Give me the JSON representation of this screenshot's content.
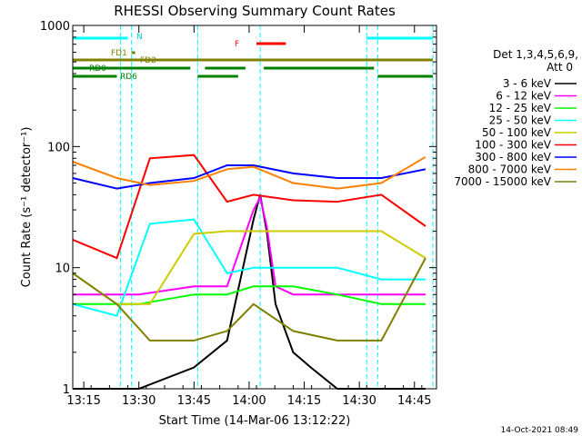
{
  "chart_data": {
    "type": "line",
    "title": "RHESSI Observing Summary Count Rates",
    "xlabel": "Start Time (14-Mar-06 13:12:22)",
    "ylabel": "Count Rate (s⁻¹ detector⁻¹)",
    "y_scale": "log",
    "ylim": [
      1,
      1000
    ],
    "xlim": [
      "13:12",
      "14:51"
    ],
    "x_ticks": [
      "13:15",
      "13:30",
      "13:45",
      "14:00",
      "14:15",
      "14:30",
      "14:45"
    ],
    "y_ticks": [
      "1",
      "10",
      "100",
      "1000"
    ],
    "legend_header": [
      "Det 1,3,4,5,6,9,",
      "Att 0"
    ],
    "legend_position": "right",
    "timestamp": "14-Oct-2021 08:49",
    "flag_labels": {
      "night": "N",
      "flare": "F",
      "fast_rate_1": "FD1",
      "fast_rate_2": "FD2",
      "decimation_0": "RD0",
      "decimation_6": "RD6"
    },
    "flag_bars": [
      {
        "label": "N",
        "color": "#00ffff",
        "segments": [
          [
            "13:12",
            "13:27"
          ],
          [
            "14:32",
            "14:50"
          ]
        ]
      },
      {
        "label": "F",
        "color": "#ff0000",
        "segments": [
          [
            "14:02",
            "14:10"
          ]
        ]
      },
      {
        "label": "FD1",
        "color": "#808000",
        "segments": [
          [
            "13:28",
            "13:29"
          ]
        ]
      },
      {
        "label": "FD2",
        "color": "#808000",
        "segments": [
          [
            "13:12",
            "14:50"
          ]
        ]
      },
      {
        "label": "RD0",
        "color": "#008000",
        "segments": [
          [
            "13:12",
            "13:44"
          ],
          [
            "13:48",
            "13:59"
          ],
          [
            "14:04",
            "14:34"
          ]
        ]
      },
      {
        "label": "RD6",
        "color": "#008000",
        "segments": [
          [
            "13:12",
            "13:24"
          ],
          [
            "13:46",
            "13:57"
          ],
          [
            "14:35",
            "14:50"
          ]
        ]
      }
    ],
    "day_night_boundaries": [
      "13:25",
      "13:28",
      "13:46",
      "14:03",
      "14:32",
      "14:35",
      "14:50"
    ],
    "series": [
      {
        "name": "3 - 6 keV",
        "color": "#000000",
        "values": [
          [
            13.2,
            1
          ],
          [
            13.5,
            1
          ],
          [
            13.75,
            1.5
          ],
          [
            13.9,
            2.5
          ],
          [
            14.02,
            25
          ],
          [
            14.05,
            40
          ],
          [
            14.08,
            20
          ],
          [
            14.12,
            5
          ],
          [
            14.2,
            2
          ],
          [
            14.28,
            1.5
          ],
          [
            14.4,
            1
          ],
          [
            14.6,
            1
          ],
          [
            14.8,
            1
          ]
        ]
      },
      {
        "name": "6 - 12 keV",
        "color": "#ff00ff",
        "values": [
          [
            13.2,
            6
          ],
          [
            13.5,
            6
          ],
          [
            13.75,
            7
          ],
          [
            13.9,
            7
          ],
          [
            14.02,
            30
          ],
          [
            14.05,
            38
          ],
          [
            14.08,
            22
          ],
          [
            14.12,
            7
          ],
          [
            14.2,
            6
          ],
          [
            14.4,
            6
          ],
          [
            14.6,
            6
          ],
          [
            14.8,
            6
          ]
        ]
      },
      {
        "name": "12 - 25 keV",
        "color": "#00ff00",
        "values": [
          [
            13.2,
            5
          ],
          [
            13.5,
            5
          ],
          [
            13.75,
            6
          ],
          [
            13.9,
            6
          ],
          [
            14.02,
            7
          ],
          [
            14.1,
            7
          ],
          [
            14.2,
            7
          ],
          [
            14.4,
            6
          ],
          [
            14.6,
            5
          ],
          [
            14.8,
            5
          ]
        ]
      },
      {
        "name": "25 - 50 keV",
        "color": "#00ffff",
        "values": [
          [
            13.2,
            5
          ],
          [
            13.4,
            4
          ],
          [
            13.55,
            23
          ],
          [
            13.75,
            25
          ],
          [
            13.9,
            9
          ],
          [
            14.02,
            10
          ],
          [
            14.1,
            10
          ],
          [
            14.2,
            10
          ],
          [
            14.4,
            10
          ],
          [
            14.6,
            8
          ],
          [
            14.8,
            8
          ]
        ]
      },
      {
        "name": "50 - 100 keV",
        "color": "#cccc00",
        "values": [
          [
            13.2,
            9
          ],
          [
            13.4,
            5
          ],
          [
            13.55,
            5
          ],
          [
            13.75,
            19
          ],
          [
            13.9,
            20
          ],
          [
            14.02,
            20
          ],
          [
            14.2,
            20
          ],
          [
            14.4,
            20
          ],
          [
            14.6,
            20
          ],
          [
            14.8,
            12
          ]
        ]
      },
      {
        "name": "100 - 300 keV",
        "color": "#ff0000",
        "values": [
          [
            13.2,
            17
          ],
          [
            13.4,
            12
          ],
          [
            13.55,
            80
          ],
          [
            13.75,
            85
          ],
          [
            13.9,
            35
          ],
          [
            14.02,
            40
          ],
          [
            14.2,
            36
          ],
          [
            14.4,
            35
          ],
          [
            14.6,
            40
          ],
          [
            14.8,
            22
          ]
        ]
      },
      {
        "name": "300 - 800 keV",
        "color": "#0000ff",
        "values": [
          [
            13.2,
            55
          ],
          [
            13.4,
            45
          ],
          [
            13.55,
            50
          ],
          [
            13.75,
            55
          ],
          [
            13.9,
            70
          ],
          [
            14.02,
            70
          ],
          [
            14.2,
            60
          ],
          [
            14.4,
            55
          ],
          [
            14.6,
            55
          ],
          [
            14.8,
            65
          ]
        ]
      },
      {
        "name": "800 - 7000 keV",
        "color": "#ff8000",
        "values": [
          [
            13.2,
            75
          ],
          [
            13.4,
            55
          ],
          [
            13.55,
            48
          ],
          [
            13.75,
            52
          ],
          [
            13.9,
            65
          ],
          [
            14.02,
            68
          ],
          [
            14.2,
            50
          ],
          [
            14.4,
            45
          ],
          [
            14.6,
            50
          ],
          [
            14.8,
            82
          ]
        ]
      },
      {
        "name": "7000 - 15000 keV",
        "color": "#808000",
        "values": [
          [
            13.2,
            9
          ],
          [
            13.4,
            5
          ],
          [
            13.55,
            2.5
          ],
          [
            13.75,
            2.5
          ],
          [
            13.9,
            3
          ],
          [
            14.02,
            5
          ],
          [
            14.2,
            3
          ],
          [
            14.4,
            2.5
          ],
          [
            14.6,
            2.5
          ],
          [
            14.8,
            12
          ]
        ]
      }
    ]
  }
}
